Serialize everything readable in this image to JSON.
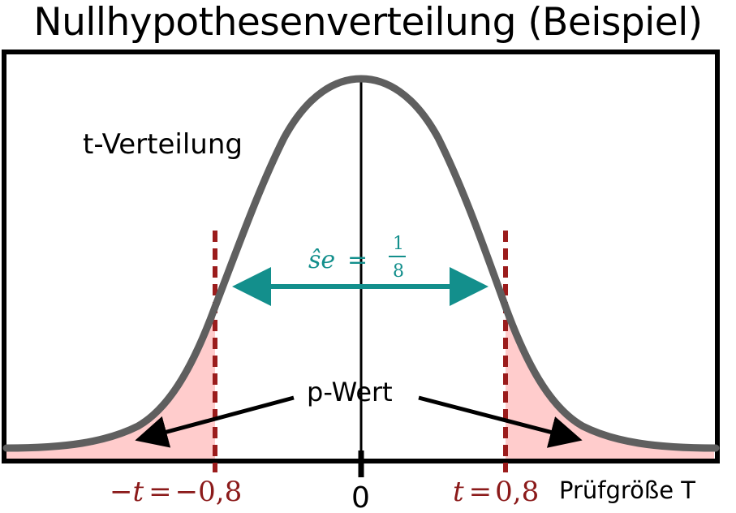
{
  "title": "Nullhypothesenverteilung (Beispiel)",
  "curve_label": "t-Verteilung",
  "se_label": {
    "lhs": "ŝe",
    "eq": "=",
    "num": "1",
    "den": "8"
  },
  "p_value_label": "p-Wert",
  "x_axis": {
    "center_tick": "0",
    "name": "Prüfgröße T",
    "left_marker": {
      "lhs": "−t",
      "eq": "=",
      "rhs": "−0,8"
    },
    "right_marker": {
      "lhs": "t",
      "eq": "=",
      "rhs": "0,8"
    }
  },
  "colors": {
    "curve": "#5f5f5f",
    "critical_line": "#9b1c1c",
    "tail_fill": "#ffcccc",
    "se_arrow": "#138f8c",
    "frame": "#000000"
  }
}
